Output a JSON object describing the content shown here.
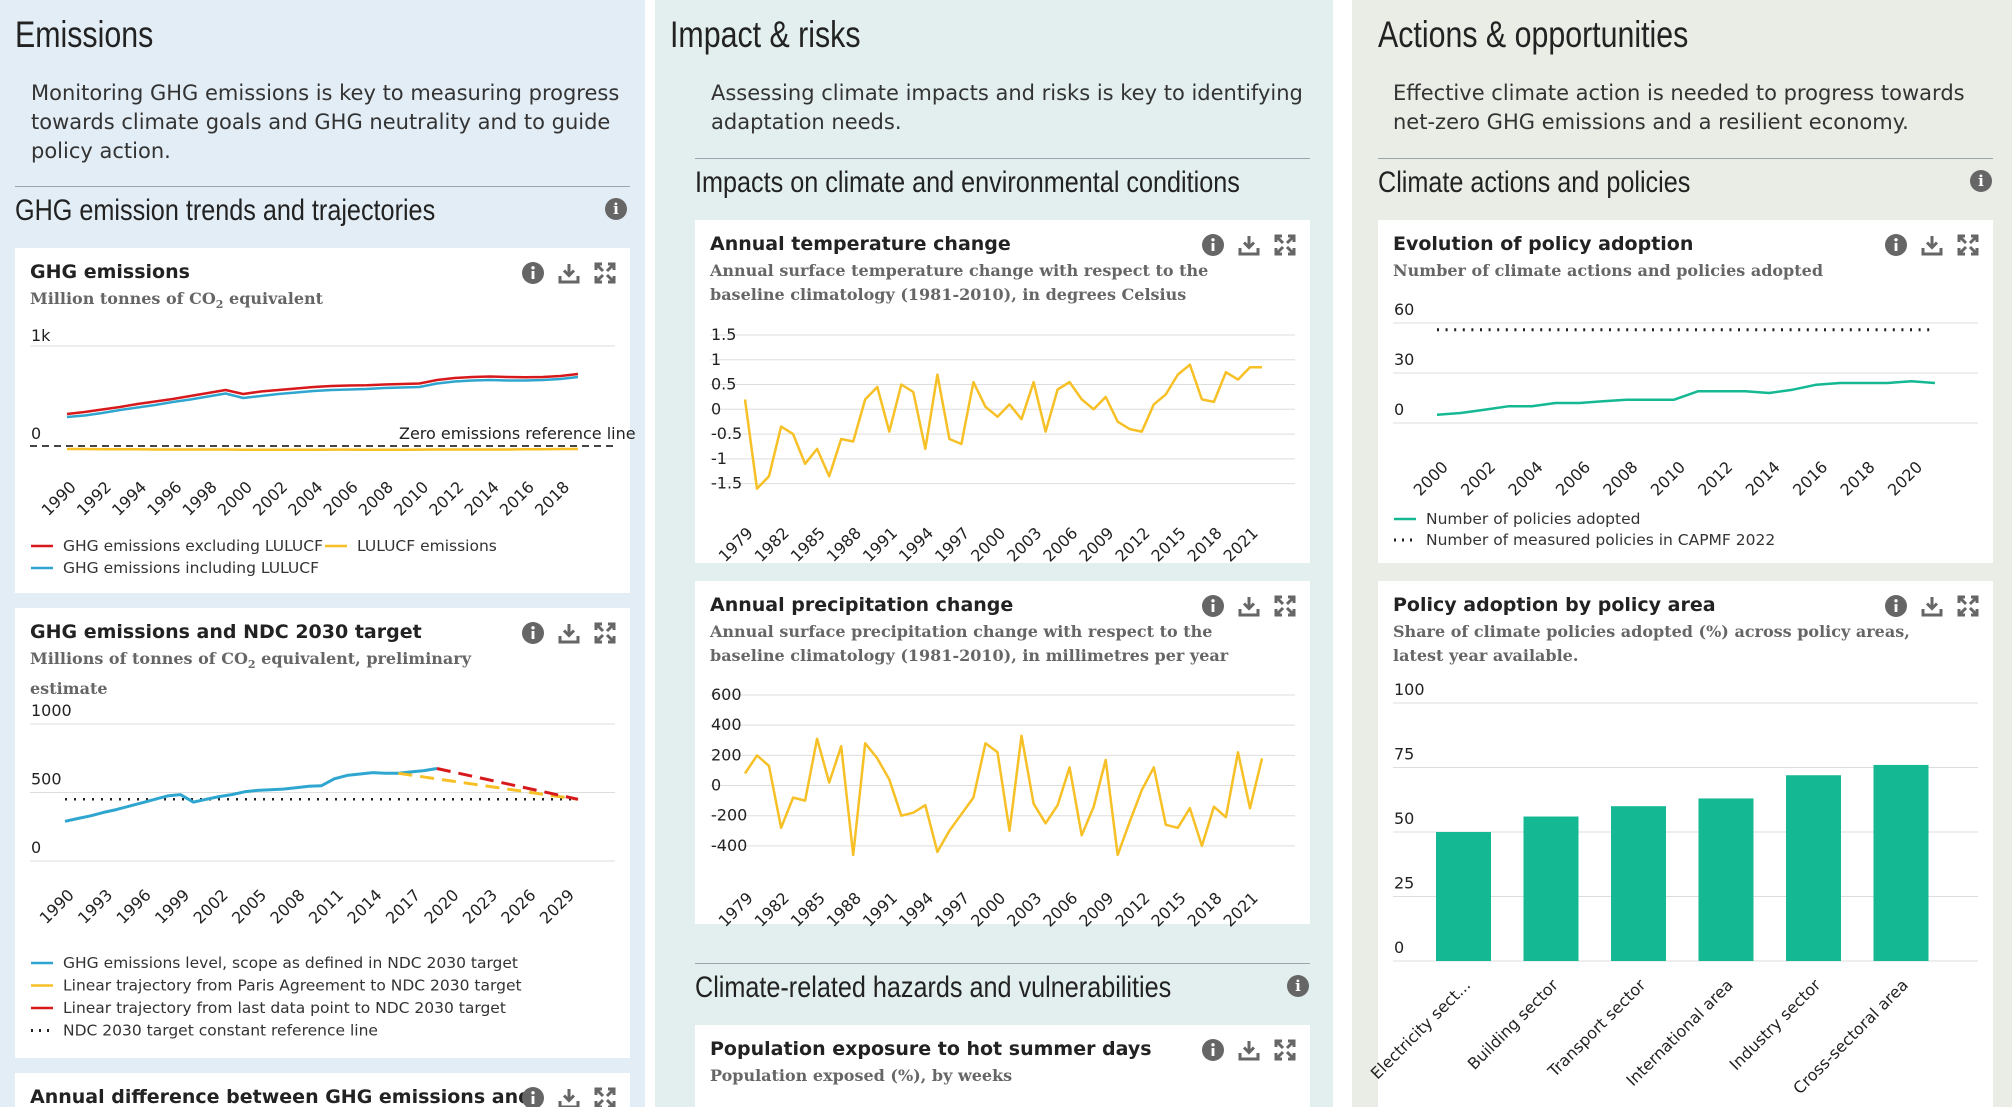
{
  "emissions": {
    "title": "Emissions",
    "description": "Monitoring GHG emissions is key to measuring progress towards climate goals and GHG neutrality and to guide policy action.",
    "section_title": "GHG emission trends and trajectories",
    "card1": {
      "title": "GHG emissions",
      "subtitle_pre": "Million tonnes of CO",
      "subtitle_sub": "2",
      "subtitle_post": " equivalent",
      "annotation": "Zero emissions reference line",
      "legend": [
        "GHG emissions excluding LULUCF",
        "LULUCF emissions",
        "GHG emissions including LULUCF"
      ]
    },
    "card2": {
      "title": "GHG emissions and NDC 2030 target",
      "subtitle_pre": "Millions of tonnes of CO",
      "subtitle_sub": "2",
      "subtitle_post": " equivalent, preliminary",
      "subtitle_line2": "estimate",
      "legend": [
        "GHG emissions level, scope as defined in NDC 2030 target",
        "Linear trajectory from Paris Agreement to NDC 2030 target",
        "Linear trajectory from last data point to NDC 2030 target",
        "NDC 2030 target constant reference line"
      ]
    },
    "card3": {
      "title": "Annual difference between GHG emissions and"
    }
  },
  "impacts": {
    "title": "Impact & risks",
    "description": "Assessing climate impacts and risks is key to identifying adaptation needs.",
    "section_title": "Impacts on climate and environmental conditions",
    "card1": {
      "title": "Annual temperature change",
      "subtitle1": "Annual surface temperature change with respect to the",
      "subtitle2": "baseline climatology (1981-2010), in degrees Celsius"
    },
    "card2": {
      "title": "Annual precipitation change",
      "subtitle1": "Annual surface precipitation change with respect to the",
      "subtitle2": "baseline climatology (1981-2010), in millimetres per year"
    },
    "section2_title": "Climate-related hazards and vulnerabilities",
    "card3": {
      "title": "Population exposure to hot summer days",
      "subtitle1": "Population exposed (%), by weeks"
    }
  },
  "actions": {
    "title": "Actions & opportunities",
    "description": "Effective climate action is needed to progress towards net-zero GHG emissions and a resilient economy.",
    "section_title": "Climate actions and policies",
    "card1": {
      "title": "Evolution of policy adoption",
      "subtitle1": "Number of climate actions and policies adopted",
      "legend": [
        "Number of policies adopted",
        "Number of measured policies in CAPMF 2022"
      ]
    },
    "card2": {
      "title": "Policy adoption by policy area",
      "subtitle1": "Share of climate policies adopted (%) across policy areas,",
      "subtitle2": "latest year available."
    }
  },
  "icons": {
    "info": "info-icon",
    "download": "download-icon",
    "expand": "expand-icon"
  },
  "colors": {
    "red": "#d7191c",
    "blue": "#2fa6d0",
    "yellow": "#f6c026",
    "teal": "#14b893",
    "dark": "#222222"
  },
  "chart_data": [
    {
      "id": "ghg-emissions",
      "type": "line",
      "title": "GHG emissions",
      "ylabel": "Million tonnes of CO2 equivalent",
      "ylim": [
        -30,
        1000
      ],
      "yticks": [
        {
          "v": 0,
          "label": "0"
        },
        {
          "v": 1000,
          "label": "1k"
        }
      ],
      "x": [
        1990,
        1991,
        1992,
        1993,
        1994,
        1995,
        1996,
        1997,
        1998,
        1999,
        2000,
        2001,
        2002,
        2003,
        2004,
        2005,
        2006,
        2007,
        2008,
        2009,
        2010,
        2011,
        2012,
        2013,
        2014,
        2015,
        2016,
        2017,
        2018,
        2019
      ],
      "xticks": [
        1990,
        1992,
        1994,
        1996,
        1998,
        2000,
        2002,
        2004,
        2006,
        2008,
        2010,
        2012,
        2014,
        2016,
        2018
      ],
      "series": [
        {
          "name": "GHG emissions excluding LULUCF",
          "color": "#d7191c",
          "values": [
            320,
            340,
            365,
            390,
            420,
            445,
            470,
            500,
            530,
            560,
            520,
            545,
            560,
            575,
            590,
            600,
            605,
            608,
            615,
            620,
            625,
            660,
            680,
            690,
            695,
            690,
            688,
            690,
            700,
            720
          ]
        },
        {
          "name": "GHG emissions including LULUCF",
          "color": "#2fa6d0",
          "values": [
            290,
            305,
            330,
            360,
            385,
            410,
            440,
            465,
            495,
            525,
            480,
            500,
            520,
            535,
            550,
            560,
            565,
            570,
            580,
            585,
            590,
            625,
            645,
            655,
            660,
            655,
            655,
            660,
            670,
            690
          ]
        },
        {
          "name": "LULUCF emissions",
          "color": "#f6c026",
          "values": [
            -30,
            -30,
            -32,
            -32,
            -33,
            -35,
            -35,
            -35,
            -35,
            -35,
            -38,
            -38,
            -38,
            -38,
            -37,
            -36,
            -36,
            -37,
            -37,
            -38,
            -36,
            -35,
            -35,
            -35,
            -35,
            -35,
            -33,
            -33,
            -30,
            -30
          ]
        }
      ],
      "reference_line": {
        "value": 0,
        "label": "Zero emissions reference line"
      }
    },
    {
      "id": "ghg-ndc",
      "type": "line",
      "title": "GHG emissions and NDC 2030 target",
      "ylim": [
        0,
        1000
      ],
      "yticks": [
        0,
        500,
        1000
      ],
      "xticks": [
        1990,
        1993,
        1996,
        1999,
        2002,
        2005,
        2008,
        2011,
        2014,
        2017,
        2020,
        2023,
        2026,
        2029
      ],
      "series": [
        {
          "name": "GHG emissions level, scope as defined in NDC 2030 target",
          "color": "#2fa6d0",
          "x": [
            1990,
            1991,
            1992,
            1993,
            1994,
            1995,
            1996,
            1997,
            1998,
            1999,
            2000,
            2001,
            2002,
            2003,
            2004,
            2005,
            2006,
            2007,
            2008,
            2009,
            2010,
            2011,
            2012,
            2013,
            2014,
            2015,
            2016,
            2017,
            2018,
            2019
          ],
          "values": [
            290,
            310,
            330,
            355,
            375,
            400,
            425,
            450,
            475,
            485,
            430,
            450,
            470,
            485,
            505,
            515,
            520,
            525,
            535,
            545,
            550,
            600,
            625,
            635,
            645,
            640,
            640,
            650,
            660,
            675
          ]
        },
        {
          "name": "Linear trajectory from Paris Agreement to NDC 2030 target",
          "color": "#f6c026",
          "x": [
            2016,
            2030
          ],
          "values": [
            640,
            450
          ]
        },
        {
          "name": "Linear trajectory from last data point to NDC 2030 target",
          "color": "#d7191c",
          "x": [
            2019,
            2030
          ],
          "values": [
            675,
            450
          ]
        },
        {
          "name": "NDC 2030 target constant reference line",
          "color": "#222222",
          "x": [
            1990,
            2030
          ],
          "values": [
            450,
            450
          ]
        }
      ]
    },
    {
      "id": "temperature",
      "type": "line",
      "title": "Annual temperature change",
      "ylim": [
        -1.75,
        1.5
      ],
      "yticks": [
        {
          "v": 1.5,
          "label": "1.5"
        },
        {
          "v": 1,
          "label": "1"
        },
        {
          "v": 0.5,
          "label": "0.5"
        },
        {
          "v": 0,
          "label": "0"
        },
        {
          "v": -0.5,
          "label": "-0.5"
        },
        {
          "v": -1,
          "label": "-1"
        },
        {
          "v": -1.5,
          "label": "-1.5"
        }
      ],
      "xlim": [
        1979,
        2022
      ],
      "xticks": [
        1979,
        1982,
        1985,
        1988,
        1991,
        1994,
        1997,
        2000,
        2003,
        2006,
        2009,
        2012,
        2015,
        2018,
        2021
      ],
      "series": [
        {
          "name": "",
          "color": "#f6c026",
          "x": [
            1979,
            1980,
            1981,
            1982,
            1983,
            1984,
            1985,
            1986,
            1987,
            1988,
            1989,
            1990,
            1991,
            1992,
            1993,
            1994,
            1995,
            1996,
            1997,
            1998,
            1999,
            2000,
            2001,
            2002,
            2003,
            2004,
            2005,
            2006,
            2007,
            2008,
            2009,
            2010,
            2011,
            2012,
            2013,
            2014,
            2015,
            2016,
            2017,
            2018,
            2019,
            2020,
            2021,
            2022
          ],
          "values": [
            0.2,
            -1.6,
            -1.35,
            -0.35,
            -0.5,
            -1.1,
            -0.8,
            -1.35,
            -0.6,
            -0.65,
            0.2,
            0.45,
            -0.45,
            0.5,
            0.35,
            -0.8,
            0.7,
            -0.6,
            -0.7,
            0.55,
            0.05,
            -0.15,
            0.1,
            -0.2,
            0.55,
            -0.45,
            0.4,
            0.55,
            0.2,
            0,
            0.25,
            -0.25,
            -0.4,
            -0.45,
            0.1,
            0.3,
            0.7,
            0.9,
            0.2,
            0.15,
            0.75,
            0.6,
            0.85,
            0.85
          ]
        }
      ]
    },
    {
      "id": "precipitation",
      "type": "line",
      "title": "Annual precipitation change",
      "ylim": [
        -500,
        600
      ],
      "yticks": [
        {
          "v": 600,
          "label": "600"
        },
        {
          "v": 400,
          "label": "400"
        },
        {
          "v": 200,
          "label": "200"
        },
        {
          "v": 0,
          "label": "0"
        },
        {
          "v": -200,
          "label": "-200"
        },
        {
          "v": -400,
          "label": "-400"
        }
      ],
      "xlim": [
        1979,
        2022
      ],
      "xticks": [
        1979,
        1982,
        1985,
        1988,
        1991,
        1994,
        1997,
        2000,
        2003,
        2006,
        2009,
        2012,
        2015,
        2018,
        2021
      ],
      "series": [
        {
          "name": "",
          "color": "#f6c026",
          "x": [
            1979,
            1980,
            1981,
            1982,
            1983,
            1984,
            1985,
            1986,
            1987,
            1988,
            1989,
            1990,
            1991,
            1992,
            1993,
            1994,
            1995,
            1996,
            1997,
            1998,
            1999,
            2000,
            2001,
            2002,
            2003,
            2004,
            2005,
            2006,
            2007,
            2008,
            2009,
            2010,
            2011,
            2012,
            2013,
            2014,
            2015,
            2016,
            2017,
            2018,
            2019,
            2020,
            2021,
            2022
          ],
          "values": [
            80,
            200,
            130,
            -280,
            -80,
            -100,
            310,
            20,
            260,
            -460,
            280,
            180,
            40,
            -200,
            -180,
            -130,
            -440,
            -300,
            -190,
            -80,
            280,
            220,
            -300,
            330,
            -120,
            -250,
            -130,
            120,
            -330,
            -140,
            170,
            -460,
            -240,
            -30,
            120,
            -260,
            -280,
            -150,
            -400,
            -140,
            -210,
            220,
            -150,
            180
          ]
        }
      ]
    },
    {
      "id": "policy-evolution",
      "type": "line",
      "title": "Evolution of policy adoption",
      "ylim": [
        0,
        60
      ],
      "yticks": [
        0,
        30,
        60
      ],
      "xlim": [
        2000,
        2021
      ],
      "xticks": [
        2000,
        2002,
        2004,
        2006,
        2008,
        2010,
        2012,
        2014,
        2016,
        2018,
        2020
      ],
      "series": [
        {
          "name": "Number of policies adopted",
          "color": "#14b893",
          "x": [
            2000,
            2001,
            2002,
            2003,
            2004,
            2005,
            2006,
            2007,
            2008,
            2009,
            2010,
            2011,
            2012,
            2013,
            2014,
            2015,
            2016,
            2017,
            2018,
            2019,
            2020,
            2021
          ],
          "values": [
            5,
            6,
            8,
            10,
            10,
            12,
            12,
            13,
            14,
            14,
            14,
            19,
            19,
            19,
            18,
            20,
            23,
            24,
            24,
            24,
            25,
            24
          ]
        },
        {
          "name": "Number of measured policies in CAPMF 2022",
          "color": "#222222",
          "x": [
            2000,
            2021
          ],
          "values": [
            56,
            56
          ]
        }
      ]
    },
    {
      "id": "policy-area",
      "type": "bar",
      "title": "Policy adoption by policy area",
      "ylim": [
        0,
        100
      ],
      "yticks": [
        0,
        25,
        50,
        75,
        100
      ],
      "categories": [
        "Electricity sect...",
        "Building sector",
        "Transport sector",
        "International area",
        "Industry sector",
        "Cross-sectoral area"
      ],
      "values": [
        50,
        56,
        60,
        63,
        72,
        76
      ],
      "color": "#14b893"
    }
  ]
}
